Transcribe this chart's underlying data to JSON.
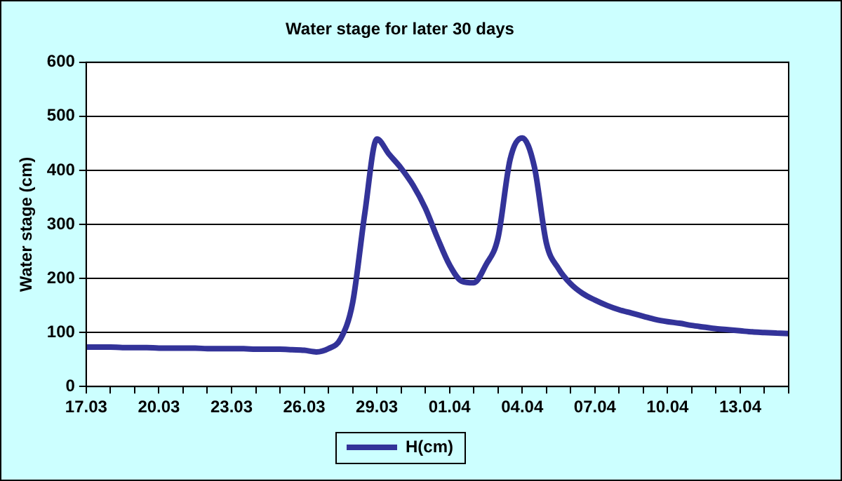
{
  "chart_data": {
    "type": "line",
    "title": "Water stage for later 30 days",
    "ylabel": "Water stage (cm)",
    "categories": [
      "17.03",
      null,
      null,
      null,
      null,
      null,
      "20.03",
      null,
      null,
      null,
      null,
      null,
      "23.03",
      null,
      null,
      null,
      null,
      null,
      "26.03",
      null,
      null,
      null,
      null,
      null,
      "29.03",
      null,
      null,
      null,
      null,
      null,
      "01.04",
      null,
      null,
      null,
      null,
      null,
      "04.04",
      null,
      null,
      null,
      null,
      null,
      "07.04",
      null,
      null,
      null,
      null,
      null,
      "10.04",
      null,
      null,
      null,
      null,
      null,
      "13.04",
      null,
      null,
      null,
      null
    ],
    "series": [
      {
        "name": "H(cm)",
        "color": "#333399",
        "values": [
          73,
          73,
          73,
          72,
          72,
          72,
          71,
          71,
          71,
          71,
          70,
          70,
          70,
          70,
          69,
          69,
          69,
          68,
          67,
          64,
          70,
          88,
          155,
          320,
          458,
          430,
          404,
          372,
          330,
          275,
          225,
          195,
          192,
          225,
          275,
          420,
          460,
          407,
          265,
          218,
          190,
          172,
          160,
          150,
          142,
          136,
          130,
          124,
          120,
          117,
          113,
          110,
          107,
          105,
          103,
          101,
          100,
          99,
          98
        ]
      }
    ],
    "ylim": [
      0,
      600
    ],
    "yticks": [
      0,
      100,
      200,
      300,
      400,
      500,
      600
    ],
    "grid": "y",
    "legend": "bottom",
    "marker": "none",
    "line_style": "solid"
  }
}
